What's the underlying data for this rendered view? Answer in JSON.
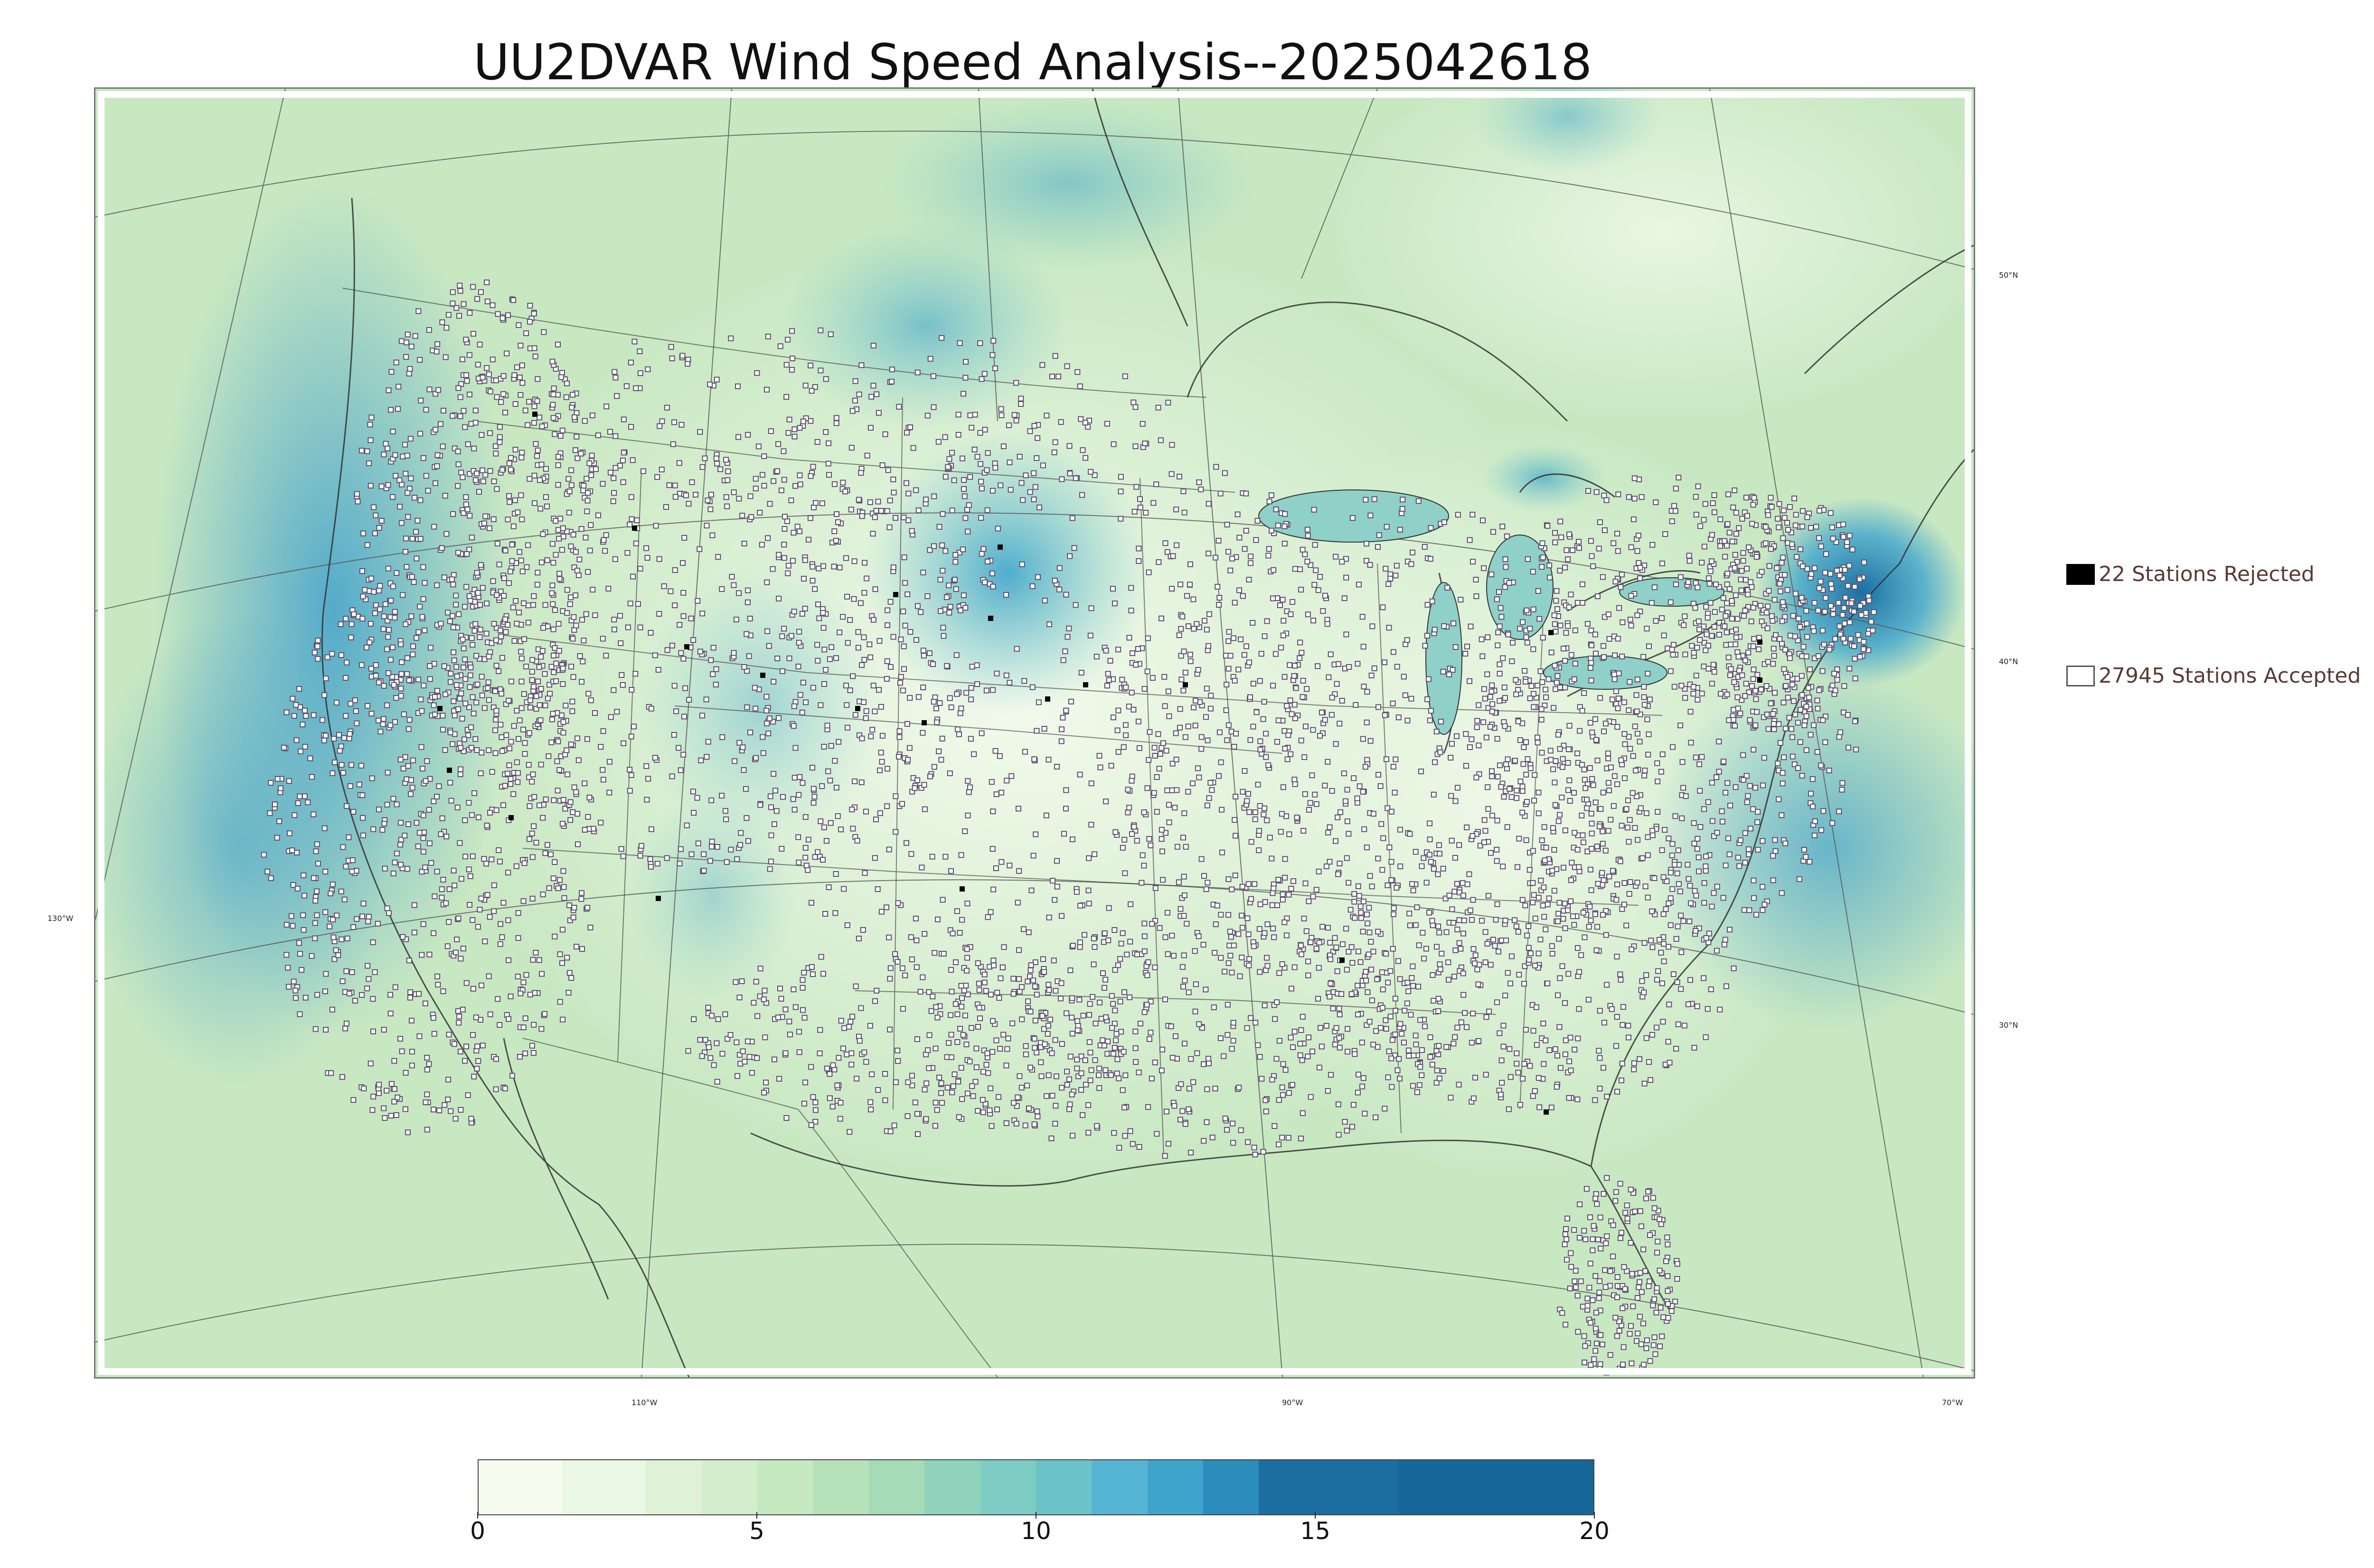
{
  "title": "UU2DVAR Wind Speed Analysis--2025042618",
  "graticule": {
    "lon_labels": [
      "130°W",
      "110°W",
      "90°W",
      "70°W"
    ],
    "lat_labels": [
      "50°N",
      "40°N",
      "30°N"
    ]
  },
  "legend": {
    "rejected": {
      "label": "22 Stations Rejected",
      "count": 22,
      "color": "#000000"
    },
    "accepted": {
      "label": "27945 Stations Accepted",
      "count": 27945,
      "color": "#ffffff"
    }
  },
  "colorbar": {
    "min": 0,
    "max": 20,
    "ticks": [
      "0",
      "5",
      "10",
      "15",
      "20"
    ],
    "tick_values": [
      0,
      5,
      10,
      15,
      20
    ],
    "colors": [
      "#f7fcf0",
      "#eaf7e4",
      "#dff2d8",
      "#d3eecd",
      "#c7e9c2",
      "#b6e2ba",
      "#a5dbb6",
      "#8fd3bd",
      "#7dcdc4",
      "#6bc3c9",
      "#56b4d3",
      "#3ea4cc",
      "#2b8cbe",
      "#1c6ea1",
      "#176699"
    ],
    "boundaries": [
      0,
      1.5,
      3,
      4,
      5,
      6,
      7,
      8,
      9,
      10,
      11,
      12,
      13,
      14,
      16.5,
      20
    ]
  },
  "map": {
    "background_color": "#cbe9c4",
    "ocean_highlight_color": "#5fb3d2",
    "strong_wind_color": "#2a86c0",
    "land_light_color": "#eef8e8"
  }
}
